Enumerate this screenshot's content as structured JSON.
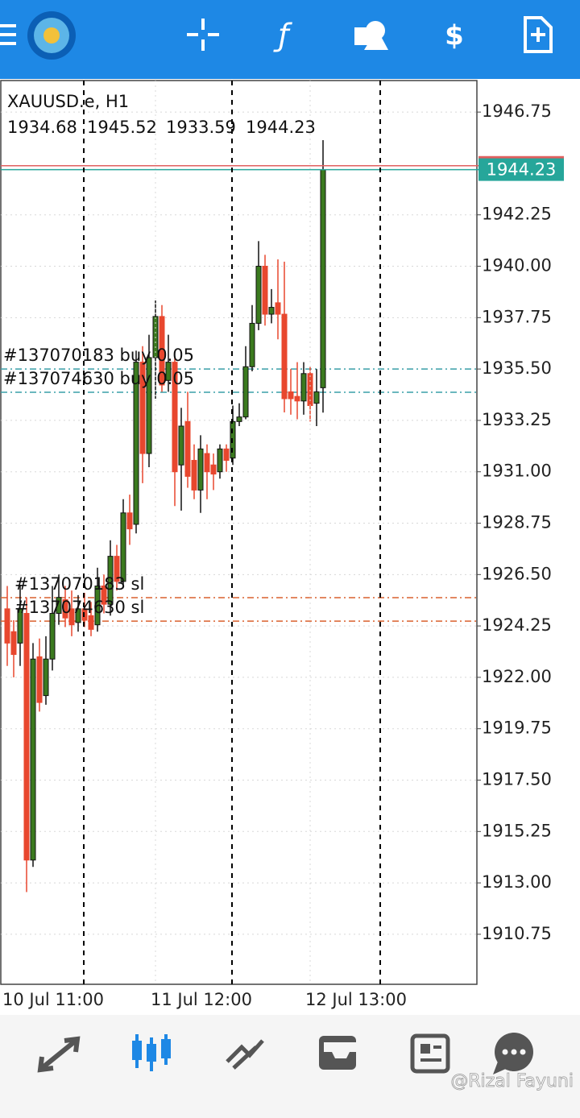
{
  "chart_data": {
    "type": "candlestick",
    "title": "XAUUSD.e, H1",
    "categories": [
      "10 Jul 11:00",
      null,
      null,
      null,
      null,
      null,
      null,
      null,
      null,
      null,
      null,
      null,
      null,
      null,
      null,
      null,
      null,
      null,
      null,
      null,
      null,
      null,
      null,
      "11 Jul 12:00",
      null,
      null,
      null,
      null,
      null,
      null,
      null,
      null,
      null,
      null,
      null,
      null,
      null,
      null,
      null,
      null,
      null,
      null,
      null,
      null,
      null,
      null,
      null,
      "12 Jul 13:00",
      null,
      null
    ],
    "open": [
      1925,
      1924,
      1923.5,
      1924.8,
      1914,
      1922.9,
      1921.2,
      1922.8,
      1924.8,
      1925.4,
      1925,
      1924.4,
      1925,
      1924.7,
      1924.3,
      1926,
      1925.2,
      1927.3,
      1926.2,
      1929.2,
      1928.7,
      1935.8,
      1931.8,
      1936,
      1937.8,
      1935,
      1935.8,
      1931.3,
      1933.2,
      1931.5,
      1930.2,
      1931.8,
      1931.3,
      1931,
      1932,
      1931.6,
      1933.2,
      1933.4,
      1935.6,
      1937.5,
      1940,
      1937.9,
      1938.4,
      1937.9,
      1934.5,
      1934.3,
      1934.1,
      1935.3,
      1934,
      1934.68
    ],
    "high": [
      1926,
      1924.5,
      1926,
      1925.5,
      1923.5,
      1923.7,
      1923.8,
      1926,
      1926.5,
      1926,
      1925.8,
      1925.6,
      1925.7,
      1925.3,
      1926.8,
      1926.5,
      1928,
      1927.8,
      1929.8,
      1930,
      1936.3,
      1936.5,
      1937,
      1938.5,
      1938.3,
      1937,
      1936,
      1933.8,
      1934.5,
      1932.2,
      1932.6,
      1932.2,
      1931.8,
      1932.2,
      1932.2,
      1933.9,
      1934,
      1936.5,
      1938.3,
      1941.1,
      1940.5,
      1939,
      1940.3,
      1940.2,
      1935.5,
      1935.8,
      1935.8,
      1935.6,
      1935.5,
      1945.52
    ],
    "low": [
      1922.5,
      1922,
      1922.5,
      1912.6,
      1913.7,
      1920.5,
      1920.8,
      1922.3,
      1924.3,
      1924.2,
      1923.8,
      1924,
      1924.2,
      1923.8,
      1924,
      1924.8,
      1924.7,
      1925.8,
      1926,
      1927.8,
      1928.3,
      1930.5,
      1931.2,
      1934.2,
      1934.5,
      1934.5,
      1929.5,
      1929.3,
      1930.3,
      1929.8,
      1929.2,
      1929.8,
      1930.2,
      1930.7,
      1931,
      1931.3,
      1933,
      1933.3,
      1935.4,
      1937.2,
      1937.4,
      1937.5,
      1936.8,
      1933.6,
      1933.5,
      1933.3,
      1933.5,
      1933.2,
      1933,
      1933.59
    ],
    "close": [
      1923.5,
      1923,
      1925,
      1914,
      1922.8,
      1920.9,
      1922.8,
      1924.8,
      1925.5,
      1924.6,
      1924.3,
      1925,
      1924.5,
      1924.1,
      1926,
      1925.2,
      1927.3,
      1926.2,
      1929.2,
      1928.5,
      1935.8,
      1931.8,
      1936,
      1937.8,
      1934.8,
      1935.8,
      1931,
      1933,
      1930.8,
      1930.2,
      1932,
      1931,
      1930.9,
      1932,
      1931.5,
      1933.2,
      1933.4,
      1935.6,
      1937.5,
      1940,
      1937.9,
      1938.2,
      1937.9,
      1934.2,
      1934.2,
      1934.1,
      1935.3,
      1933.9,
      1934.5,
      1944.23
    ],
    "bull_color": "#3b7a1f",
    "bear_color": "#e8472e",
    "ask": 1944.4,
    "ask_color": "#e06060",
    "bid_color": "#26a69a",
    "orders": [
      {
        "label": "#137070183 buy 0.05",
        "price": 1935.5,
        "color": "#3a9fa8"
      },
      {
        "label": "#137074630 buy 0.05",
        "price": 1934.48,
        "color": "#3a9fa8"
      },
      {
        "label": "#137070183 sl",
        "price": 1925.49,
        "color": "#d9602e"
      },
      {
        "label": "#137074630 sl",
        "price": 1924.46,
        "color": "#d9602e"
      }
    ],
    "ylim": [
      1908.56,
      1948.13
    ],
    "yticks": [
      1946.75,
      1942.25,
      {
        "value": 1940,
        "label": "1940.00"
      },
      1937.75,
      {
        "value": 1935.5,
        "label": "1935.50"
      },
      1933.25,
      {
        "value": 1931,
        "label": "1931.00"
      },
      1928.75,
      {
        "value": 1926.5,
        "label": "1926.50"
      },
      1924.25,
      {
        "value": 1922,
        "label": "1922.00"
      },
      1919.75,
      {
        "value": 1917.5,
        "label": "1917.50"
      },
      1915.25,
      {
        "value": 1913,
        "label": "1913.00"
      },
      1910.75
    ],
    "grid": true
  },
  "watermark": "@Rizal Fayuni"
}
